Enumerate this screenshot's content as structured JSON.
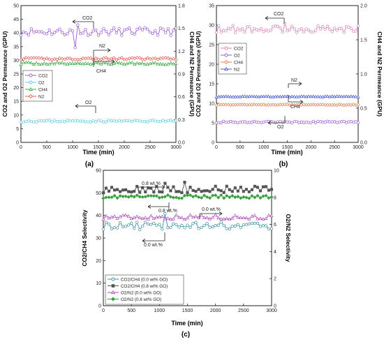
{
  "chart_data": [
    {
      "panel": "(a)",
      "type": "line",
      "xlabel": "Time (min)",
      "ylabel": "CO2 and O2 Permeance (GPU)",
      "y2label": "CH4 and N2 Permeance (GPU)",
      "xlim": [
        0,
        3000
      ],
      "ylim": [
        0,
        50
      ],
      "y2lim": [
        0,
        1.8
      ],
      "xticks": [
        "0",
        "500",
        "1000",
        "1500",
        "2000",
        "2500",
        "3000"
      ],
      "yticks": [
        "0",
        "5",
        "10",
        "15",
        "20",
        "25",
        "30",
        "35",
        "40",
        "45",
        "50"
      ],
      "y2ticks": [
        "0.0",
        "0.3",
        "0.6",
        "0.9",
        "1.2",
        "1.5",
        "1.8"
      ],
      "legend": [
        "CO2",
        "O2",
        "CH4",
        "N2"
      ],
      "legend_position": "middle-left",
      "annotations": [
        "CO2",
        "N2",
        "CH4",
        "O2"
      ],
      "series": [
        {
          "name": "CO2",
          "axis": "left",
          "color": "#9b59d0",
          "marker": "circle",
          "base": 40.5,
          "amp": 1.4,
          "seed": 11,
          "dips": [
            [
              1040,
              -6
            ],
            [
              1100,
              2.5
            ]
          ]
        },
        {
          "name": "O2",
          "axis": "left",
          "color": "#5bc8e0",
          "marker": "circle",
          "base": 7.8,
          "amp": 0.35,
          "seed": 23,
          "dips": []
        },
        {
          "name": "CH4",
          "axis": "right",
          "color": "#3fae49",
          "marker": "triangle",
          "base": 1.04,
          "amp": 0.015,
          "seed": 37,
          "dips": []
        },
        {
          "name": "N2",
          "axis": "right",
          "color": "#e05a4e",
          "marker": "diamond",
          "base": 1.1,
          "amp": 0.015,
          "seed": 41,
          "dips": []
        }
      ]
    },
    {
      "panel": "(b)",
      "type": "line",
      "xlabel": "Time (min)",
      "ylabel": "CO2 and O2 Permeance (GPU)",
      "y2label": "CH4 and N2 Permeance (GPU)",
      "xlim": [
        0,
        3000
      ],
      "ylim": [
        0,
        35
      ],
      "y2lim": [
        0,
        2.0
      ],
      "xticks": [
        "0",
        "500",
        "1000",
        "1500",
        "2000",
        "2500",
        "3000"
      ],
      "yticks": [
        "0",
        "5",
        "10",
        "15",
        "20",
        "25",
        "30",
        "35"
      ],
      "y2ticks": [
        "0.0",
        "0.5",
        "1.0",
        "1.5",
        "2.0"
      ],
      "legend": [
        "CO2",
        "O2",
        "CH4",
        "N2"
      ],
      "legend_position": "middle-left",
      "annotations": [
        "CO2",
        "N2",
        "CH4",
        "O2"
      ],
      "series": [
        {
          "name": "CO2",
          "axis": "left",
          "color": "#d480b8",
          "marker": "circle",
          "base": 29.0,
          "amp": 0.9,
          "seed": 53,
          "dips": [
            [
              1450,
              2.0
            ]
          ]
        },
        {
          "name": "O2",
          "axis": "left",
          "color": "#9b59d0",
          "marker": "circle",
          "base": 5.2,
          "amp": 0.2,
          "seed": 61,
          "dips": []
        },
        {
          "name": "CH4",
          "axis": "right",
          "color": "#e07a4e",
          "marker": "diamond",
          "base": 0.55,
          "amp": 0.006,
          "seed": 67,
          "dips": []
        },
        {
          "name": "N2",
          "axis": "right",
          "color": "#4a5bd0",
          "marker": "triangle",
          "base": 0.67,
          "amp": 0.006,
          "seed": 71,
          "dips": []
        }
      ]
    },
    {
      "panel": "(c)",
      "type": "line",
      "xlabel": "Time (min)",
      "ylabel": "CO2/CH4 Selectivity",
      "y2label": "O2/N2 Selectivity",
      "xlim": [
        0,
        3000
      ],
      "ylim": [
        0,
        60
      ],
      "y2lim": [
        0,
        10
      ],
      "xticks": [
        "0",
        "500",
        "1000",
        "1500",
        "2000",
        "2500",
        "3000"
      ],
      "yticks": [
        "0",
        "10",
        "20",
        "30",
        "40",
        "50",
        "60"
      ],
      "y2ticks": [
        "0",
        "2",
        "4",
        "6",
        "8",
        "10"
      ],
      "legend": [
        "CO2/CH4 (0.0 wt% GO)",
        "CO2/CH4 (0.8 wt% GO)",
        "O2/N2 (0.0 wt% GO)",
        "O2/N2 (0.8 wt% GO)"
      ],
      "legend_position": "bottom-left",
      "annotations": [
        "0.8 wt.%",
        "0.8 wt.%",
        "0.0 wt.%",
        "0.0 wt.%"
      ],
      "series": [
        {
          "name": "CO2/CH4 (0.0 wt% GO)",
          "axis": "left",
          "color": "#3a8ea0",
          "marker": "circle",
          "base": 35.5,
          "amp": 1.6,
          "seed": 83,
          "dips": [
            [
              650,
              -3
            ],
            [
              1100,
              4
            ]
          ]
        },
        {
          "name": "CO2/CH4 (0.8 wt% GO)",
          "axis": "left",
          "color": "#555555",
          "marker": "square",
          "base": 51.5,
          "amp": 1.5,
          "seed": 89,
          "dips": [
            [
              1460,
              3.5
            ],
            [
              1080,
              3
            ]
          ]
        },
        {
          "name": "O2/N2 (0.0 wt% GO)",
          "axis": "right",
          "color": "#b050c0",
          "marker": "triangle",
          "base": 6.55,
          "amp": 0.18,
          "seed": 97,
          "dips": []
        },
        {
          "name": "O2/N2 (0.8 wt% GO)",
          "axis": "right",
          "color": "#3aa040",
          "marker": "diamond",
          "base": 8.05,
          "amp": 0.12,
          "seed": 101,
          "dips": []
        }
      ]
    }
  ]
}
